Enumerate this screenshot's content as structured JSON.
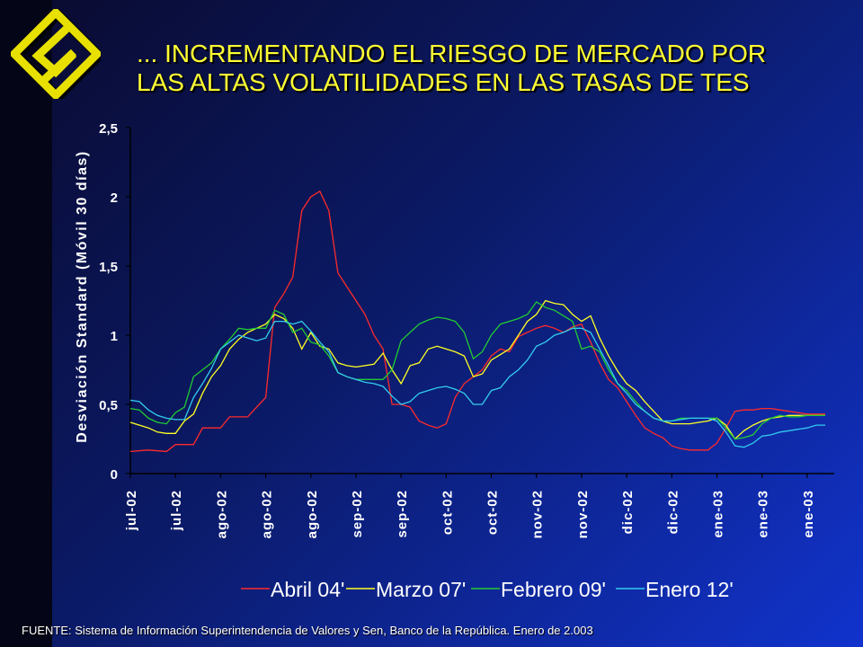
{
  "slide": {
    "title_line1": "... INCREMENTANDO EL RIESGO DE MERCADO POR",
    "title_line2": "LAS ALTAS VOLATILIDADES EN LAS TASAS DE TES",
    "footer": "FUENTE:  Sistema de Información Superintendencia de Valores y Sen, Banco de la República. Enero de 2.003",
    "logo_icon": "diamond-s-logo-icon",
    "title_color": "#ffff33"
  },
  "chart_data": {
    "type": "line",
    "title": "",
    "ylabel": "Desviación Standard (Móvil 30 días)",
    "xlabel": "",
    "ylim": [
      0,
      2.5
    ],
    "yticks": [
      0,
      0.5,
      1,
      1.5,
      2,
      2.5
    ],
    "ytick_labels": [
      "0",
      "0,5",
      "1",
      "1,5",
      "2",
      "2,5"
    ],
    "xlim": [
      0,
      78
    ],
    "categories": [
      "jul-02",
      "jul-02",
      "ago-02",
      "ago-02",
      "ago-02",
      "sep-02",
      "sep-02",
      "oct-02",
      "oct-02",
      "nov-02",
      "nov-02",
      "dic-02",
      "dic-02",
      "ene-03",
      "ene-03",
      "ene-03"
    ],
    "category_positions": [
      0,
      5,
      10,
      15,
      20,
      25,
      30,
      35,
      40,
      45,
      50,
      55,
      60,
      65,
      70,
      75
    ],
    "grid": false,
    "legend_position": "bottom",
    "series": [
      {
        "name": "Abril 04'",
        "color": "#ff2a2a",
        "points": [
          [
            0,
            0.16
          ],
          [
            2,
            0.17
          ],
          [
            4,
            0.16
          ],
          [
            5,
            0.21
          ],
          [
            7,
            0.21
          ],
          [
            8,
            0.33
          ],
          [
            10,
            0.33
          ],
          [
            11,
            0.41
          ],
          [
            13,
            0.41
          ],
          [
            14,
            0.48
          ],
          [
            15,
            0.55
          ],
          [
            16,
            1.2
          ],
          [
            17,
            1.3
          ],
          [
            18,
            1.42
          ],
          [
            19,
            1.9
          ],
          [
            20,
            2.0
          ],
          [
            21,
            2.04
          ],
          [
            22,
            1.9
          ],
          [
            23,
            1.45
          ],
          [
            24,
            1.35
          ],
          [
            25,
            1.25
          ],
          [
            26,
            1.15
          ],
          [
            27,
            1.0
          ],
          [
            28,
            0.9
          ],
          [
            29,
            0.5
          ],
          [
            30,
            0.5
          ],
          [
            31,
            0.48
          ],
          [
            32,
            0.38
          ],
          [
            33,
            0.35
          ],
          [
            34,
            0.33
          ],
          [
            35,
            0.36
          ],
          [
            36,
            0.55
          ],
          [
            37,
            0.65
          ],
          [
            38,
            0.7
          ],
          [
            39,
            0.75
          ],
          [
            40,
            0.85
          ],
          [
            41,
            0.9
          ],
          [
            42,
            0.88
          ],
          [
            43,
            0.99
          ],
          [
            44,
            1.02
          ],
          [
            45,
            1.05
          ],
          [
            46,
            1.07
          ],
          [
            47,
            1.05
          ],
          [
            48,
            1.02
          ],
          [
            49,
            1.06
          ],
          [
            50,
            1.08
          ],
          [
            51,
            0.95
          ],
          [
            52,
            0.8
          ],
          [
            53,
            0.68
          ],
          [
            54,
            0.62
          ],
          [
            55,
            0.52
          ],
          [
            56,
            0.42
          ],
          [
            57,
            0.33
          ],
          [
            58,
            0.29
          ],
          [
            59,
            0.26
          ],
          [
            60,
            0.2
          ],
          [
            61,
            0.18
          ],
          [
            62,
            0.17
          ],
          [
            63,
            0.17
          ],
          [
            64,
            0.17
          ],
          [
            65,
            0.22
          ],
          [
            66,
            0.33
          ],
          [
            67,
            0.45
          ],
          [
            68,
            0.46
          ],
          [
            69,
            0.46
          ],
          [
            70,
            0.47
          ],
          [
            71,
            0.47
          ],
          [
            72,
            0.46
          ],
          [
            73,
            0.45
          ],
          [
            74,
            0.44
          ],
          [
            75,
            0.43
          ],
          [
            76,
            0.43
          ],
          [
            77,
            0.43
          ]
        ]
      },
      {
        "name": "Marzo 07'",
        "color": "#ffff22",
        "points": [
          [
            0,
            0.37
          ],
          [
            2,
            0.33
          ],
          [
            3,
            0.3
          ],
          [
            4,
            0.29
          ],
          [
            5,
            0.29
          ],
          [
            6,
            0.38
          ],
          [
            7,
            0.43
          ],
          [
            8,
            0.58
          ],
          [
            9,
            0.7
          ],
          [
            10,
            0.78
          ],
          [
            11,
            0.9
          ],
          [
            12,
            0.97
          ],
          [
            13,
            1.02
          ],
          [
            14,
            1.05
          ],
          [
            15,
            1.08
          ],
          [
            16,
            1.15
          ],
          [
            17,
            1.12
          ],
          [
            18,
            1.05
          ],
          [
            19,
            0.9
          ],
          [
            20,
            1.02
          ],
          [
            21,
            0.92
          ],
          [
            22,
            0.9
          ],
          [
            23,
            0.8
          ],
          [
            24,
            0.78
          ],
          [
            25,
            0.77
          ],
          [
            26,
            0.78
          ],
          [
            27,
            0.79
          ],
          [
            28,
            0.87
          ],
          [
            29,
            0.75
          ],
          [
            30,
            0.65
          ],
          [
            31,
            0.78
          ],
          [
            32,
            0.8
          ],
          [
            33,
            0.9
          ],
          [
            34,
            0.92
          ],
          [
            35,
            0.9
          ],
          [
            36,
            0.88
          ],
          [
            37,
            0.85
          ],
          [
            38,
            0.7
          ],
          [
            39,
            0.72
          ],
          [
            40,
            0.82
          ],
          [
            41,
            0.86
          ],
          [
            42,
            0.9
          ],
          [
            43,
            1.0
          ],
          [
            44,
            1.1
          ],
          [
            45,
            1.15
          ],
          [
            46,
            1.25
          ],
          [
            47,
            1.23
          ],
          [
            48,
            1.22
          ],
          [
            49,
            1.15
          ],
          [
            50,
            1.1
          ],
          [
            51,
            1.14
          ],
          [
            52,
            0.98
          ],
          [
            53,
            0.85
          ],
          [
            54,
            0.74
          ],
          [
            55,
            0.65
          ],
          [
            56,
            0.6
          ],
          [
            57,
            0.52
          ],
          [
            58,
            0.45
          ],
          [
            59,
            0.38
          ],
          [
            60,
            0.36
          ],
          [
            61,
            0.36
          ],
          [
            62,
            0.36
          ],
          [
            63,
            0.37
          ],
          [
            64,
            0.38
          ],
          [
            65,
            0.4
          ],
          [
            66,
            0.35
          ],
          [
            67,
            0.25
          ],
          [
            68,
            0.31
          ],
          [
            69,
            0.35
          ],
          [
            70,
            0.38
          ],
          [
            71,
            0.4
          ],
          [
            72,
            0.41
          ],
          [
            73,
            0.42
          ],
          [
            74,
            0.42
          ],
          [
            75,
            0.42
          ],
          [
            76,
            0.42
          ],
          [
            77,
            0.42
          ]
        ]
      },
      {
        "name": "Febrero 09'",
        "color": "#22cc33",
        "points": [
          [
            0,
            0.47
          ],
          [
            1,
            0.46
          ],
          [
            2,
            0.4
          ],
          [
            3,
            0.37
          ],
          [
            4,
            0.36
          ],
          [
            5,
            0.44
          ],
          [
            6,
            0.48
          ],
          [
            7,
            0.7
          ],
          [
            8,
            0.75
          ],
          [
            9,
            0.8
          ],
          [
            10,
            0.9
          ],
          [
            11,
            0.97
          ],
          [
            12,
            1.05
          ],
          [
            13,
            1.04
          ],
          [
            14,
            1.05
          ],
          [
            15,
            1.05
          ],
          [
            16,
            1.18
          ],
          [
            17,
            1.15
          ],
          [
            18,
            1.02
          ],
          [
            19,
            1.05
          ],
          [
            20,
            0.95
          ],
          [
            21,
            0.93
          ],
          [
            22,
            0.85
          ],
          [
            23,
            0.73
          ],
          [
            24,
            0.7
          ],
          [
            25,
            0.68
          ],
          [
            26,
            0.68
          ],
          [
            27,
            0.68
          ],
          [
            28,
            0.68
          ],
          [
            29,
            0.75
          ],
          [
            30,
            0.96
          ],
          [
            31,
            1.02
          ],
          [
            32,
            1.08
          ],
          [
            33,
            1.11
          ],
          [
            34,
            1.13
          ],
          [
            35,
            1.12
          ],
          [
            36,
            1.1
          ],
          [
            37,
            1.02
          ],
          [
            38,
            0.83
          ],
          [
            39,
            0.88
          ],
          [
            40,
            1.0
          ],
          [
            41,
            1.08
          ],
          [
            42,
            1.1
          ],
          [
            43,
            1.12
          ],
          [
            44,
            1.15
          ],
          [
            45,
            1.24
          ],
          [
            46,
            1.2
          ],
          [
            47,
            1.18
          ],
          [
            48,
            1.14
          ],
          [
            49,
            1.1
          ],
          [
            50,
            0.9
          ],
          [
            51,
            0.92
          ],
          [
            52,
            0.88
          ],
          [
            53,
            0.75
          ],
          [
            54,
            0.65
          ],
          [
            55,
            0.6
          ],
          [
            56,
            0.52
          ],
          [
            57,
            0.45
          ],
          [
            58,
            0.4
          ],
          [
            59,
            0.38
          ],
          [
            60,
            0.38
          ],
          [
            61,
            0.4
          ],
          [
            62,
            0.4
          ],
          [
            63,
            0.4
          ],
          [
            64,
            0.4
          ],
          [
            65,
            0.4
          ],
          [
            66,
            0.33
          ],
          [
            67,
            0.25
          ],
          [
            68,
            0.26
          ],
          [
            69,
            0.28
          ],
          [
            70,
            0.36
          ],
          [
            71,
            0.4
          ],
          [
            72,
            0.42
          ],
          [
            73,
            0.41
          ],
          [
            74,
            0.41
          ],
          [
            75,
            0.42
          ],
          [
            76,
            0.42
          ],
          [
            77,
            0.42
          ]
        ]
      },
      {
        "name": "Enero 12'",
        "color": "#33ccee",
        "points": [
          [
            0,
            0.53
          ],
          [
            1,
            0.52
          ],
          [
            2,
            0.46
          ],
          [
            3,
            0.42
          ],
          [
            4,
            0.4
          ],
          [
            5,
            0.39
          ],
          [
            6,
            0.39
          ],
          [
            7,
            0.55
          ],
          [
            8,
            0.65
          ],
          [
            9,
            0.76
          ],
          [
            10,
            0.9
          ],
          [
            11,
            0.95
          ],
          [
            12,
            1.0
          ],
          [
            13,
            0.98
          ],
          [
            14,
            0.96
          ],
          [
            15,
            0.98
          ],
          [
            16,
            1.1
          ],
          [
            17,
            1.1
          ],
          [
            18,
            1.08
          ],
          [
            19,
            1.1
          ],
          [
            20,
            1.03
          ],
          [
            21,
            0.95
          ],
          [
            22,
            0.88
          ],
          [
            23,
            0.73
          ],
          [
            24,
            0.7
          ],
          [
            25,
            0.68
          ],
          [
            26,
            0.66
          ],
          [
            27,
            0.65
          ],
          [
            28,
            0.63
          ],
          [
            29,
            0.56
          ],
          [
            30,
            0.5
          ],
          [
            31,
            0.52
          ],
          [
            32,
            0.58
          ],
          [
            33,
            0.6
          ],
          [
            34,
            0.62
          ],
          [
            35,
            0.63
          ],
          [
            36,
            0.61
          ],
          [
            37,
            0.58
          ],
          [
            38,
            0.5
          ],
          [
            39,
            0.5
          ],
          [
            40,
            0.6
          ],
          [
            41,
            0.62
          ],
          [
            42,
            0.7
          ],
          [
            43,
            0.75
          ],
          [
            44,
            0.82
          ],
          [
            45,
            0.92
          ],
          [
            46,
            0.95
          ],
          [
            47,
            1.0
          ],
          [
            48,
            1.02
          ],
          [
            49,
            1.05
          ],
          [
            50,
            1.05
          ],
          [
            51,
            1.02
          ],
          [
            52,
            0.9
          ],
          [
            53,
            0.78
          ],
          [
            54,
            0.65
          ],
          [
            55,
            0.58
          ],
          [
            56,
            0.5
          ],
          [
            57,
            0.45
          ],
          [
            58,
            0.4
          ],
          [
            59,
            0.38
          ],
          [
            60,
            0.38
          ],
          [
            61,
            0.39
          ],
          [
            62,
            0.4
          ],
          [
            63,
            0.4
          ],
          [
            64,
            0.4
          ],
          [
            65,
            0.38
          ],
          [
            66,
            0.3
          ],
          [
            67,
            0.2
          ],
          [
            68,
            0.19
          ],
          [
            69,
            0.22
          ],
          [
            70,
            0.27
          ],
          [
            71,
            0.28
          ],
          [
            72,
            0.3
          ],
          [
            73,
            0.31
          ],
          [
            74,
            0.32
          ],
          [
            75,
            0.33
          ],
          [
            76,
            0.35
          ],
          [
            77,
            0.35
          ]
        ]
      }
    ]
  }
}
